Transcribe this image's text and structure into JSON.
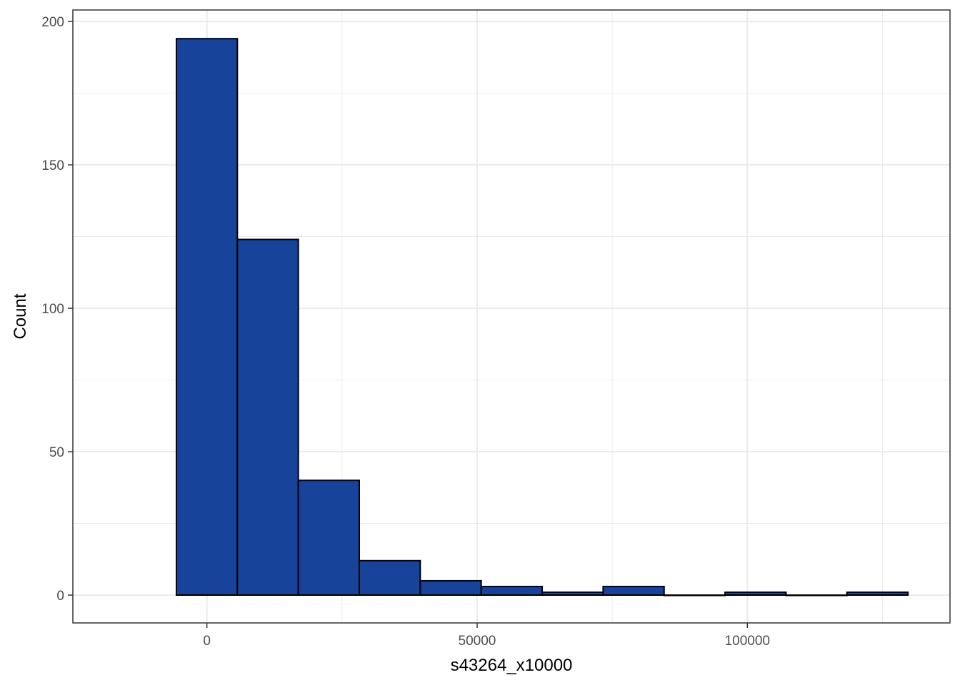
{
  "chart_data": {
    "type": "bar",
    "subtype": "histogram",
    "title": "",
    "xlabel": "s43264_x10000",
    "ylabel": "Count",
    "xlim": [
      -24800,
      137500
    ],
    "ylim": [
      -9.7,
      204
    ],
    "x_ticks": [
      0,
      50000,
      100000
    ],
    "y_ticks": [
      0,
      50,
      100,
      150,
      200
    ],
    "bin_width": 11280,
    "bins": [
      {
        "x0": -5640,
        "x1": 5640,
        "count": 194
      },
      {
        "x0": 5640,
        "x1": 16920,
        "count": 124
      },
      {
        "x0": 16920,
        "x1": 28200,
        "count": 40
      },
      {
        "x0": 28200,
        "x1": 39480,
        "count": 12
      },
      {
        "x0": 39480,
        "x1": 50760,
        "count": 5
      },
      {
        "x0": 50760,
        "x1": 62040,
        "count": 3
      },
      {
        "x0": 62040,
        "x1": 73320,
        "count": 1
      },
      {
        "x0": 73320,
        "x1": 84600,
        "count": 3
      },
      {
        "x0": 84600,
        "x1": 95880,
        "count": 0
      },
      {
        "x0": 95880,
        "x1": 107160,
        "count": 1
      },
      {
        "x0": 107160,
        "x1": 118440,
        "count": 0
      },
      {
        "x0": 118440,
        "x1": 129720,
        "count": 1
      }
    ],
    "bar_fill": "#17439a",
    "bar_stroke": "#000000",
    "grid": true,
    "grid_color": "#ebebeb",
    "panel_border": "#333333",
    "legend": "none"
  }
}
